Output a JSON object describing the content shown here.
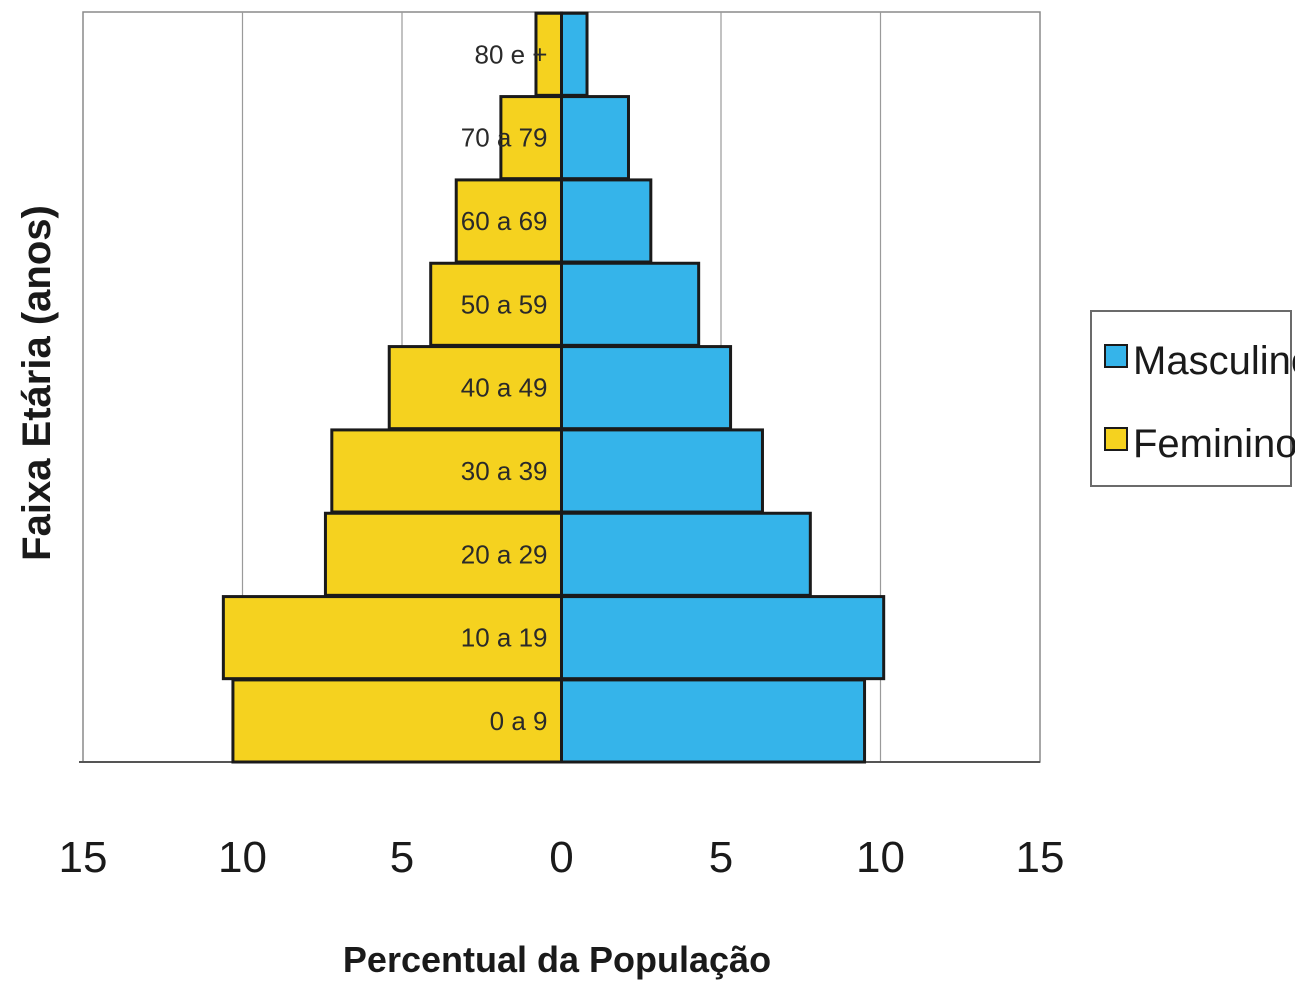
{
  "chart_data": {
    "type": "bar",
    "orientation": "horizontal",
    "layout": "population-pyramid",
    "categories": [
      "0 a 9",
      "10 a 19",
      "20 a 29",
      "30 a 39",
      "40 a 49",
      "50 a 59",
      "60 a 69",
      "70 a 79",
      "80 e +"
    ],
    "series": [
      {
        "name": "Masculino",
        "side": "right",
        "color": "#35b4ea",
        "values": [
          9.5,
          10.1,
          7.8,
          6.3,
          5.3,
          4.3,
          2.8,
          2.1,
          0.8
        ]
      },
      {
        "name": "Feminino",
        "side": "left",
        "color": "#f5d21f",
        "values": [
          10.3,
          10.6,
          7.4,
          7.2,
          5.4,
          4.1,
          3.3,
          1.9,
          0.8
        ]
      }
    ],
    "xlabel": "Percentual da População",
    "ylabel": "Faixa Etária (anos)",
    "xlim": [
      -15,
      15
    ],
    "xticks": [
      "15",
      "10",
      "5",
      "0",
      "5",
      "10",
      "15"
    ],
    "grid": "vertical",
    "legend": "right",
    "legend_entries": [
      "Masculino",
      "Feminino"
    ]
  }
}
